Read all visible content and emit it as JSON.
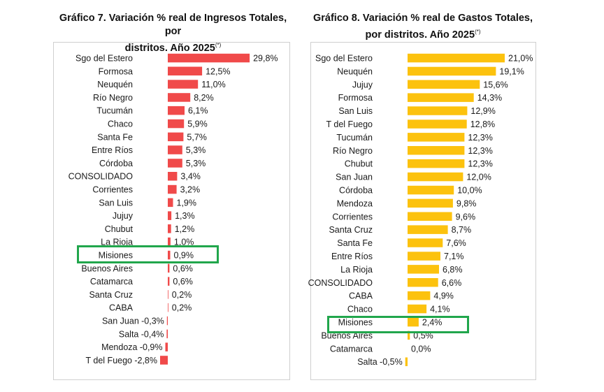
{
  "charts": [
    {
      "title": "Gráfico 7. Variación % real de Ingresos Totales, por",
      "title_line2": "distritos. Año 2025",
      "title_note": "(*)"
    },
    {
      "title": "Gráfico 8. Variación % real de Gastos Totales,",
      "title_line2": "por distritos. Año 2025",
      "title_note": "(*)"
    }
  ],
  "chart_data": [
    {
      "type": "bar",
      "orientation": "horizontal",
      "bar_color": "#f04a4a",
      "highlight_color": "#21a64c",
      "highlighted_category": "Misiones",
      "categories": [
        "Sgo del Estero",
        "Formosa",
        "Neuquén",
        "Río Negro",
        "Tucumán",
        "Chaco",
        "Santa Fe",
        "Entre Ríos",
        "Córdoba",
        "CONSOLIDADO",
        "Corrientes",
        "San Luis",
        "Jujuy",
        "Chubut",
        "La Rioja",
        "Misiones",
        "Buenos Aires",
        "Catamarca",
        "Santa Cruz",
        "CABA",
        "San Juan",
        "Salta",
        "Mendoza",
        "T del Fuego"
      ],
      "values": [
        29.8,
        12.5,
        11.0,
        8.2,
        6.1,
        5.9,
        5.7,
        5.3,
        5.3,
        3.4,
        3.2,
        1.9,
        1.3,
        1.2,
        1.0,
        0.9,
        0.6,
        0.6,
        0.2,
        0.2,
        -0.3,
        -0.4,
        -0.9,
        -2.8
      ],
      "value_labels": [
        "29,8%",
        "12,5%",
        "11,0%",
        "8,2%",
        "6,1%",
        "5,9%",
        "5,7%",
        "5,3%",
        "5,3%",
        "3,4%",
        "3,2%",
        "1,9%",
        "1,3%",
        "1,2%",
        "1,0%",
        "0,9%",
        "0,6%",
        "0,6%",
        "0,2%",
        "0,2%",
        "-0,3%",
        "-0,4%",
        "-0,9%",
        "-2,8%"
      ],
      "grid": false,
      "legend": "none"
    },
    {
      "type": "bar",
      "orientation": "horizontal",
      "bar_color": "#fcc20e",
      "highlight_color": "#21a64c",
      "highlighted_category": "Misiones",
      "categories": [
        "Sgo del Estero",
        "Neuquén",
        "Jujuy",
        "Formosa",
        "San Luis",
        "T del Fuego",
        "Tucumán",
        "Río Negro",
        "Chubut",
        "San Juan",
        "Córdoba",
        "Mendoza",
        "Corrientes",
        "Santa Cruz",
        "Santa Fe",
        "Entre Ríos",
        "La Rioja",
        "CONSOLIDADO",
        "CABA",
        "Chaco",
        "Misiones",
        "Buenos Aires",
        "Catamarca",
        "Salta"
      ],
      "values": [
        21.0,
        19.1,
        15.6,
        14.3,
        12.9,
        12.8,
        12.3,
        12.3,
        12.3,
        12.0,
        10.0,
        9.8,
        9.6,
        8.7,
        7.6,
        7.1,
        6.8,
        6.6,
        4.9,
        4.1,
        2.4,
        0.5,
        0.0,
        -0.5
      ],
      "value_labels": [
        "21,0%",
        "19,1%",
        "15,6%",
        "14,3%",
        "12,9%",
        "12,8%",
        "12,3%",
        "12,3%",
        "12,3%",
        "12,0%",
        "10,0%",
        "9,8%",
        "9,6%",
        "8,7%",
        "7,6%",
        "7,1%",
        "6,8%",
        "6,6%",
        "4,9%",
        "4,1%",
        "2,4%",
        "0,5%",
        "0,0%",
        "-0,5%"
      ],
      "grid": false,
      "legend": "none"
    }
  ]
}
